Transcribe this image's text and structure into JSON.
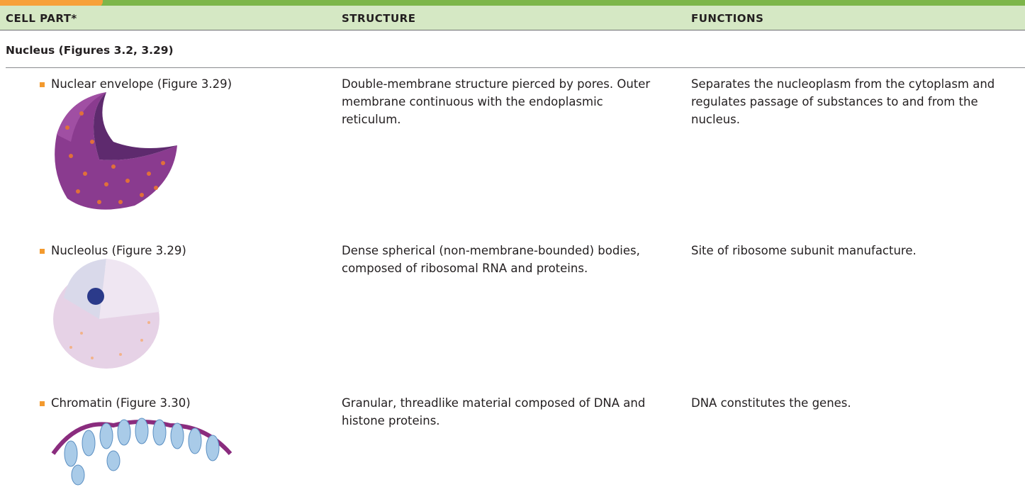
{
  "header": {
    "columns": [
      "CELL PART*",
      "STRUCTURE",
      "FUNCTIONS"
    ]
  },
  "section": {
    "title": "Nucleus (Figures 3.2, 3.29)"
  },
  "rows": [
    {
      "cell_part": "Nuclear envelope (Figure 3.29)",
      "structure": "Double-membrane structure pierced by pores. Outer membrane continuous with the endoplasmic reticulum.",
      "functions": "Separates the nucleoplasm from the cytoplasm and regulates passage of substances to and from the nucleus."
    },
    {
      "cell_part": "Nucleolus (Figure 3.29)",
      "structure": "Dense spherical (non-membrane-bounded) bodies, composed of ribosomal RNA and proteins.",
      "functions": "Site of ribosome subunit manufacture."
    },
    {
      "cell_part": "Chromatin (Figure 3.30)",
      "structure": "Granular, threadlike material composed of DNA and histone proteins.",
      "functions": "DNA constitutes the genes."
    }
  ]
}
